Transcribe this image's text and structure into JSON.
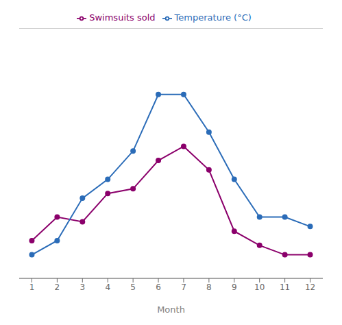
{
  "chart_data": {
    "type": "line",
    "x_label": "Month",
    "x": [
      1,
      2,
      3,
      4,
      5,
      6,
      7,
      8,
      9,
      10,
      11,
      12
    ],
    "series": [
      {
        "name": "Swimsuits sold",
        "color": "#8B006B",
        "marker": "circle",
        "values": [
          5,
          10,
          9,
          15,
          16,
          22,
          25,
          20,
          7,
          4,
          2,
          2
        ]
      },
      {
        "name": "Temperature (°C)",
        "color": "#2B6CB8",
        "marker": "circle",
        "values": [
          2,
          5,
          14,
          18,
          24,
          36,
          36,
          28,
          18,
          10,
          10,
          8
        ]
      }
    ],
    "xlim": [
      0.5,
      12.5
    ],
    "xticks": [
      1,
      2,
      3,
      4,
      5,
      6,
      7,
      8,
      9,
      10,
      11,
      12
    ],
    "ylim": [
      -3,
      50
    ],
    "yticks": [
      -3,
      5.833333333333333,
      14.666666666666666,
      23.5,
      32.333333333333336,
      41.166666666666664,
      50
    ],
    "grid": "y",
    "legend": "top",
    "tick_labels": "x"
  }
}
